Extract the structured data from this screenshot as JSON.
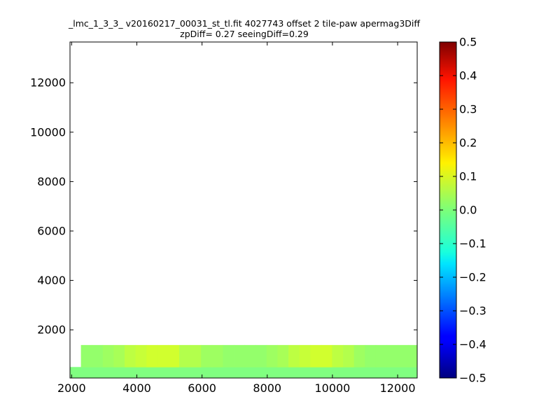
{
  "chart_data": {
    "type": "heatmap",
    "title_line1": "_lmc_1_3_3_ v20160217_00031_st_tl.fit 4027743 offset 2 tile-paw apermag3Diff",
    "title_line2": "zpDiff= 0.27 seeingDiff=0.29",
    "xlim": [
      1950,
      12600
    ],
    "ylim": [
      50,
      13650
    ],
    "x_ticks": [
      2000,
      4000,
      6000,
      8000,
      10000,
      12000
    ],
    "x_tick_labels": [
      "2000",
      "4000",
      "6000",
      "8000",
      "10000",
      "12000"
    ],
    "y_ticks": [
      2000,
      4000,
      6000,
      8000,
      10000,
      12000
    ],
    "y_tick_labels": [
      "2000",
      "4000",
      "6000",
      "8000",
      "10000",
      "12000"
    ],
    "grid": false,
    "colormap": "jet",
    "colorbar": {
      "min": -0.5,
      "max": 0.5,
      "ticks": [
        0.5,
        0.4,
        0.3,
        0.2,
        0.1,
        0.0,
        -0.1,
        -0.2,
        -0.3,
        -0.4,
        -0.5
      ],
      "tick_labels": [
        "0.5",
        "0.4",
        "0.3",
        "0.2",
        "0.1",
        "0.0",
        "−0.1",
        "−0.2",
        "−0.3",
        "−0.4",
        "−0.5"
      ]
    },
    "cell_size": [
      335,
      445
    ],
    "grid_x0": 1950,
    "grid_y0": 50,
    "rows": [
      [
        0,
        0,
        0,
        0,
        0,
        0,
        0,
        0,
        0,
        0,
        0,
        0,
        0,
        0,
        0,
        0,
        0,
        0,
        0,
        0,
        0,
        0,
        0,
        0,
        0,
        0,
        0,
        0,
        0,
        0,
        0,
        0
      ],
      [
        null,
        0.02,
        0.02,
        0.03,
        0.04,
        0.06,
        0.07,
        0.08,
        0.08,
        0.08,
        0.05,
        0.05,
        0.03,
        0.03,
        0.02,
        0.02,
        0.02,
        0.02,
        0.03,
        0.04,
        0.06,
        0.07,
        0.08,
        0.08,
        0.06,
        0.05,
        0.03,
        0.02,
        0.02,
        0.02,
        0.02,
        0.02
      ],
      [
        null,
        0.02,
        0.02,
        0.03,
        0.04,
        0.06,
        0.07,
        0.08,
        0.08,
        0.08,
        0.05,
        0.05,
        0.03,
        0.03,
        0.02,
        0.02,
        0.02,
        0.02,
        0.03,
        0.04,
        0.06,
        0.07,
        0.08,
        0.08,
        0.06,
        0.05,
        0.03,
        0.02,
        0.02,
        0.02,
        0.02,
        0.02
      ]
    ]
  }
}
